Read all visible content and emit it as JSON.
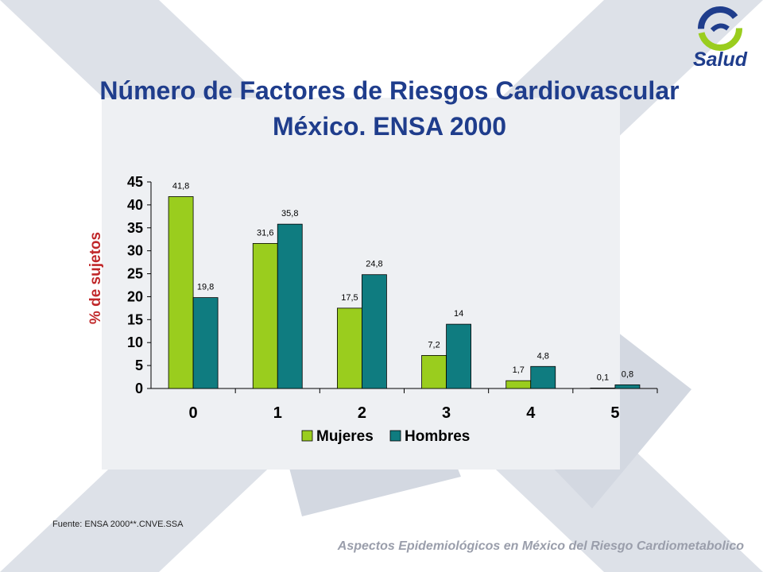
{
  "slide": {
    "title_line1": "Número de Factores de Riesgos Cardiovascular",
    "title_line2": "México. ENSA 2000",
    "logo_text": "Salud",
    "source": "Fuente: ENSA 2000**.CNVE.SSA",
    "footer": "Aspectos Epidemiológicos en México del Riesgo Cardiometabolico"
  },
  "colors": {
    "mujeres": "#9ACD1E",
    "hombres": "#0F7C80",
    "title": "#1f3d8c",
    "ylabel": "#c0282a"
  },
  "chart_data": {
    "type": "bar",
    "title": "",
    "xlabel": "",
    "ylabel": "% de sujetos",
    "categories": [
      "0",
      "1",
      "2",
      "3",
      "4",
      "5"
    ],
    "series": [
      {
        "name": "Mujeres",
        "values": [
          41.8,
          31.6,
          17.5,
          7.2,
          1.7,
          0.1
        ],
        "labels": [
          "41,8",
          "31,6",
          "17,5",
          "7,2",
          "1,7",
          "0,1"
        ]
      },
      {
        "name": "Hombres",
        "values": [
          19.8,
          35.8,
          24.8,
          14,
          4.8,
          0.8
        ],
        "labels": [
          "19,8",
          "35,8",
          "24,8",
          "14",
          "4,8",
          "0,8"
        ]
      }
    ],
    "ylim": [
      0,
      45
    ],
    "yticks": [
      0,
      5,
      10,
      15,
      20,
      25,
      30,
      35,
      40,
      45
    ],
    "grid": false,
    "legend": "bottom"
  }
}
